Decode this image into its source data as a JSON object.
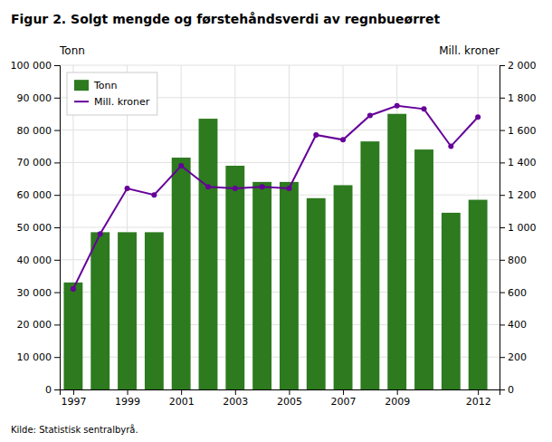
{
  "chart_data": {
    "type": "bar",
    "title": "Figur 2. Solgt mengde og førstehåndsverdi av regnbueørret",
    "annotations": [
      "Kilde: Statistisk sentralbyrå."
    ],
    "ylabel": "Tonn",
    "y2label": "Mill. kroner",
    "x": [
      1997,
      1998,
      1999,
      2000,
      2001,
      2002,
      2003,
      2004,
      2005,
      2006,
      2007,
      2008,
      2009,
      2010,
      2011,
      2012
    ],
    "xlim": [
      1996.5,
      2012.8
    ],
    "xticks": [
      1997,
      1999,
      2001,
      2003,
      2005,
      2007,
      2009,
      2012
    ],
    "ylim": [
      0,
      100000
    ],
    "yticks": [
      0,
      {
        "value": 10000,
        "label": "10 000"
      },
      {
        "value": 20000,
        "label": "20 000"
      },
      {
        "value": 30000,
        "label": "30 000"
      },
      {
        "value": 40000,
        "label": "40 000"
      },
      {
        "value": 50000,
        "label": "50 000"
      },
      {
        "value": 60000,
        "label": "60 000"
      },
      {
        "value": 70000,
        "label": "70 000"
      },
      {
        "value": 80000,
        "label": "80 000"
      },
      {
        "value": 90000,
        "label": "90 000"
      },
      {
        "value": 100000,
        "label": "100 000"
      }
    ],
    "y2lim": [
      0,
      2000
    ],
    "y2ticks": [
      0,
      200,
      400,
      600,
      800,
      {
        "value": 1000,
        "label": "1 000"
      },
      {
        "value": 1200,
        "label": "1 200"
      },
      {
        "value": 1400,
        "label": "1 400"
      },
      {
        "value": 1600,
        "label": "1 600"
      },
      {
        "value": 1800,
        "label": "1 800"
      },
      {
        "value": 2000,
        "label": "2 000"
      }
    ],
    "grid": true,
    "legend": "upper left",
    "series": [
      {
        "name": "Tonn",
        "type": "bar",
        "color": "#2d7a1f",
        "values": [
          33000,
          48500,
          48500,
          48500,
          71500,
          83500,
          69000,
          64000,
          64000,
          59000,
          63000,
          76500,
          85000,
          74000,
          54500,
          58500
        ]
      },
      {
        "name": "Mill. kroner",
        "type": "line",
        "axis": "y2",
        "color": "#660099",
        "marker": "circle",
        "values": [
          620,
          960,
          1240,
          1200,
          1380,
          1250,
          1240,
          1250,
          1240,
          1570,
          1540,
          1690,
          1750,
          1730,
          1500,
          1680
        ]
      }
    ]
  }
}
